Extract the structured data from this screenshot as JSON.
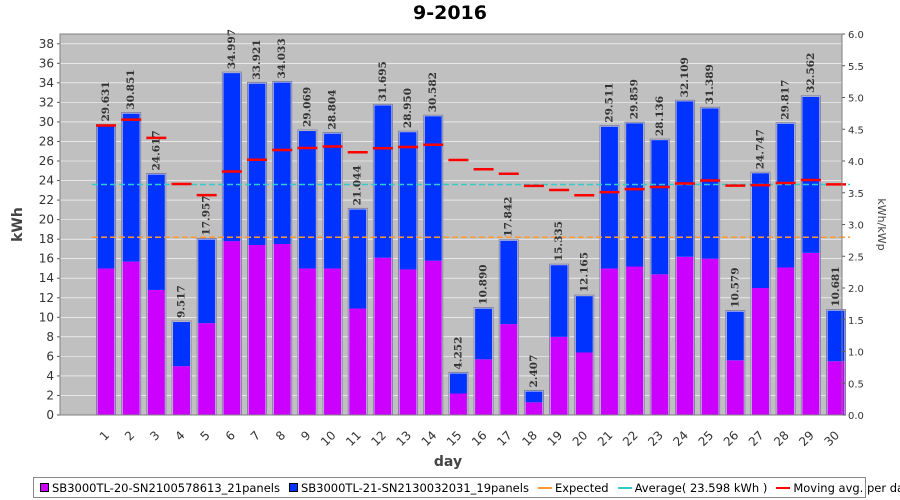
{
  "chart_data": {
    "type": "bar",
    "stacked": true,
    "title": "9-2016",
    "xlabel": "day",
    "ylabel": "kWh",
    "y2label": "kWh/kWp",
    "ylim": [
      0,
      39
    ],
    "y2lim": [
      0,
      6.0
    ],
    "yticks": [
      0,
      2,
      4,
      6,
      8,
      10,
      12,
      14,
      16,
      18,
      20,
      22,
      24,
      26,
      28,
      30,
      32,
      34,
      36,
      38
    ],
    "y2ticks": [
      "0.0",
      "0.5",
      "1.0",
      "1.5",
      "2.0",
      "2.5",
      "3.0",
      "3.5",
      "4.0",
      "4.5",
      "5.0",
      "5.5",
      "6.0"
    ],
    "categories": [
      "1",
      "2",
      "3",
      "4",
      "5",
      "6",
      "7",
      "8",
      "9",
      "10",
      "11",
      "12",
      "13",
      "14",
      "15",
      "16",
      "17",
      "18",
      "19",
      "20",
      "21",
      "22",
      "23",
      "24",
      "25",
      "26",
      "27",
      "28",
      "29",
      "30"
    ],
    "series": [
      {
        "name": "SB3000TL-20-SN2100578613_21panels",
        "color": "#cc00ff",
        "values": [
          15.0,
          15.7,
          12.8,
          5.0,
          9.4,
          17.8,
          17.4,
          17.5,
          15.0,
          15.0,
          10.9,
          16.1,
          14.9,
          15.8,
          2.2,
          5.7,
          9.3,
          1.3,
          8.0,
          6.4,
          15.0,
          15.2,
          14.4,
          16.2,
          16.0,
          5.6,
          13.0,
          15.1,
          16.6,
          5.5
        ]
      },
      {
        "name": "SB3000TL-21-SN2130032031_19panels",
        "color": "#0033ff",
        "values": [
          14.631,
          15.151,
          11.817,
          4.517,
          8.557,
          17.197,
          16.521,
          16.533,
          14.069,
          13.804,
          10.144,
          15.595,
          14.05,
          14.782,
          2.052,
          5.19,
          8.542,
          1.107,
          7.335,
          5.765,
          14.511,
          14.659,
          13.736,
          15.909,
          15.389,
          4.979,
          11.747,
          14.717,
          15.962,
          5.181
        ]
      }
    ],
    "totals": [
      "29.631",
      "30.851",
      "24.617",
      "9.517",
      "17.957",
      "34.997",
      "33.921",
      "34.033",
      "29.069",
      "28.804",
      "21.044",
      "31.695",
      "28.950",
      "30.582",
      "4.252",
      "10.890",
      "17.842",
      "2.407",
      "15.335",
      "12.165",
      "29.511",
      "29.859",
      "28.136",
      "32.109",
      "31.389",
      "10.579",
      "24.747",
      "29.817",
      "32.562",
      "10.681"
    ],
    "expected": 18.2,
    "average": 23.598,
    "moving_average": [
      29.63,
      30.24,
      28.37,
      23.65,
      22.51,
      24.92,
      26.13,
      27.12,
      27.33,
      27.48,
      26.9,
      27.3,
      27.43,
      27.66,
      26.1,
      25.15,
      24.7,
      23.46,
      23.03,
      22.49,
      22.82,
      23.12,
      23.34,
      23.7,
      24.0,
      23.48,
      23.53,
      23.75,
      24.06,
      23.61
    ],
    "colors": {
      "expected": "#ff9933",
      "average": "#33cccc",
      "moving_avg": "#ff0000",
      "plot_bg": "#c0c0c0"
    }
  },
  "legend": {
    "series1": "SB3000TL-20-SN2100578613_21panels",
    "series2": "SB3000TL-21-SN2130032031_19panels",
    "expected": "Expected",
    "average": "Average( 23.598 kWh )",
    "moving_avg": "Moving avg. per day."
  }
}
